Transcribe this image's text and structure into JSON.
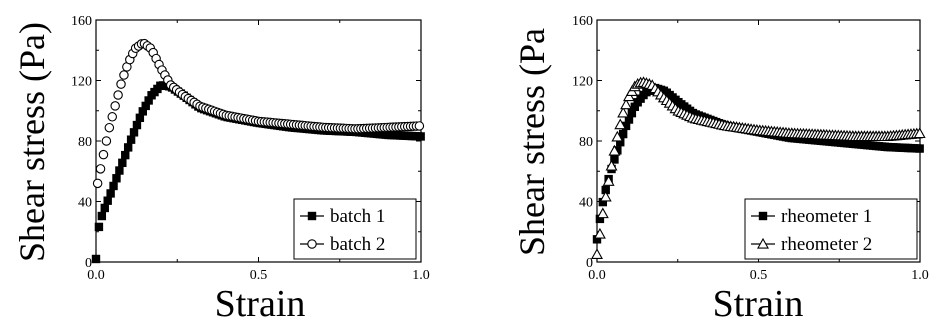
{
  "chart_data": [
    {
      "type": "scatter",
      "xlabel": "Strain",
      "ylabel": "Shear stress (Pa)",
      "xlim": [
        0,
        1.0
      ],
      "ylim": [
        0,
        160
      ],
      "xticks": [
        "0.0",
        "0.5",
        "1.0"
      ],
      "yticks": [
        "0",
        "40",
        "80",
        "120",
        "160"
      ],
      "legend_position": "bottom-right",
      "series": [
        {
          "name": "batch 1",
          "marker": "filled-square",
          "color": "#000000",
          "points": [
            [
              0.0,
              2
            ],
            [
              0.005,
              20
            ],
            [
              0.02,
              32
            ],
            [
              0.05,
              48
            ],
            [
              0.08,
              65
            ],
            [
              0.11,
              82
            ],
            [
              0.14,
              98
            ],
            [
              0.17,
              110
            ],
            [
              0.2,
              117
            ],
            [
              0.23,
              116
            ],
            [
              0.27,
              110
            ],
            [
              0.32,
              102
            ],
            [
              0.4,
              96
            ],
            [
              0.5,
              92
            ],
            [
              0.6,
              89
            ],
            [
              0.7,
              87
            ],
            [
              0.8,
              86
            ],
            [
              0.9,
              84
            ],
            [
              1.0,
              83
            ]
          ]
        },
        {
          "name": "batch 2",
          "marker": "open-circle",
          "color": "#000000",
          "points": [
            [
              0.005,
              52
            ],
            [
              0.02,
              68
            ],
            [
              0.04,
              88
            ],
            [
              0.06,
              104
            ],
            [
              0.08,
              120
            ],
            [
              0.1,
              132
            ],
            [
              0.12,
              141
            ],
            [
              0.145,
              145
            ],
            [
              0.17,
              141
            ],
            [
              0.2,
              128
            ],
            [
              0.23,
              117
            ],
            [
              0.27,
              110
            ],
            [
              0.32,
              103
            ],
            [
              0.4,
              97
            ],
            [
              0.5,
              93
            ],
            [
              0.6,
              91
            ],
            [
              0.7,
              89
            ],
            [
              0.8,
              88
            ],
            [
              0.9,
              89
            ],
            [
              1.0,
              90
            ]
          ]
        }
      ]
    },
    {
      "type": "scatter",
      "xlabel": "Strain",
      "ylabel": "Shear stress (Pa",
      "xlim": [
        0,
        1.0
      ],
      "ylim": [
        0,
        160
      ],
      "xticks": [
        "0.0",
        "0.5",
        "1.0"
      ],
      "yticks": [
        "0",
        "40",
        "80",
        "120",
        "160"
      ],
      "legend_position": "bottom-right",
      "series": [
        {
          "name": "rheometer 1",
          "marker": "filled-square",
          "color": "#000000",
          "points": [
            [
              0.0,
              15
            ],
            [
              0.01,
              30
            ],
            [
              0.02,
              42
            ],
            [
              0.04,
              58
            ],
            [
              0.06,
              72
            ],
            [
              0.09,
              90
            ],
            [
              0.12,
              104
            ],
            [
              0.15,
              112
            ],
            [
              0.18,
              115
            ],
            [
              0.21,
              113
            ],
            [
              0.25,
              106
            ],
            [
              0.3,
              98
            ],
            [
              0.4,
              90
            ],
            [
              0.5,
              86
            ],
            [
              0.6,
              82
            ],
            [
              0.7,
              80
            ],
            [
              0.8,
              78
            ],
            [
              0.9,
              76
            ],
            [
              1.0,
              75
            ]
          ]
        },
        {
          "name": "rheometer 2",
          "marker": "open-triangle",
          "color": "#000000",
          "points": [
            [
              0.0,
              5
            ],
            [
              0.01,
              20
            ],
            [
              0.02,
              35
            ],
            [
              0.04,
              58
            ],
            [
              0.06,
              80
            ],
            [
              0.08,
              98
            ],
            [
              0.1,
              110
            ],
            [
              0.12,
              117
            ],
            [
              0.14,
              119
            ],
            [
              0.17,
              117
            ],
            [
              0.2,
              110
            ],
            [
              0.25,
              100
            ],
            [
              0.3,
              95
            ],
            [
              0.4,
              90
            ],
            [
              0.5,
              87
            ],
            [
              0.6,
              85
            ],
            [
              0.7,
              84
            ],
            [
              0.8,
              83
            ],
            [
              0.9,
              83
            ],
            [
              1.0,
              85
            ]
          ]
        }
      ]
    }
  ]
}
